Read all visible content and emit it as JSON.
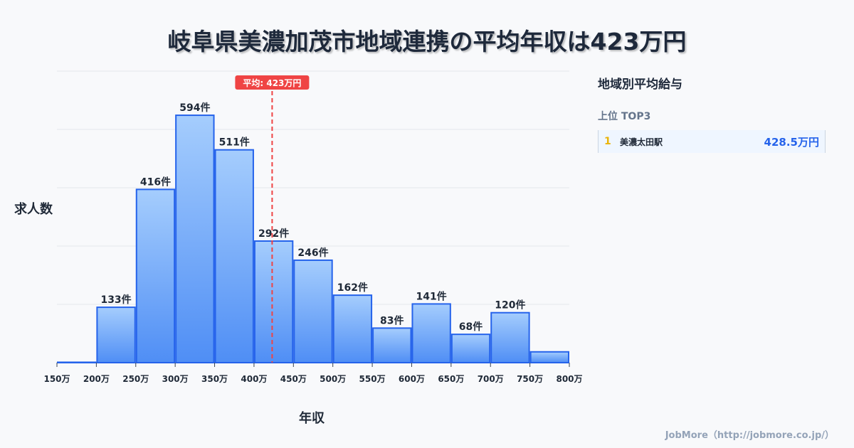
{
  "title": "岐阜県美濃加茂市地域連携の平均年収は423万円",
  "side_panel": {
    "title": "地域別平均給与",
    "subtitle": "上位 TOP3",
    "items": [
      {
        "rank": "1",
        "name": "美濃太田駅",
        "value": "428.5万円"
      }
    ]
  },
  "footer": "JobMore（http://jobmore.co.jp/）",
  "chart_data": {
    "type": "bar",
    "title": "岐阜県美濃加茂市地域連携の平均年収は423万円",
    "xlabel": "年収",
    "ylabel": "求人数",
    "x_ticks": [
      "150万",
      "200万",
      "250万",
      "300万",
      "350万",
      "400万",
      "450万",
      "500万",
      "550万",
      "600万",
      "650万",
      "700万",
      "750万",
      "800万"
    ],
    "bins": [
      150,
      200,
      250,
      300,
      350,
      400,
      450,
      500,
      550,
      600,
      650,
      700,
      750,
      800
    ],
    "values": [
      1,
      133,
      416,
      594,
      511,
      292,
      246,
      162,
      83,
      141,
      68,
      120,
      26
    ],
    "labels": [
      "",
      "133件",
      "416件",
      "594件",
      "511件",
      "292件",
      "246件",
      "162件",
      "83件",
      "141件",
      "68件",
      "120件",
      ""
    ],
    "ylim": [
      0,
      700
    ],
    "grid": true,
    "mean": {
      "value": 423,
      "label": "平均: 423万円"
    },
    "colors": {
      "bar_top": "#a5cdfd",
      "bar_bottom": "#4f8ef5",
      "bar_edge": "#2563eb",
      "mean": "#ef4444"
    }
  }
}
